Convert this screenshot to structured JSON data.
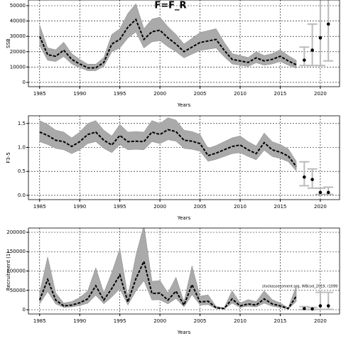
{
  "chart_data": [
    {
      "type": "line",
      "title": "F=F_R",
      "y_label": "SSB",
      "x_label": "Years",
      "x": [
        1985,
        1986,
        1987,
        1988,
        1989,
        1990,
        1991,
        1992,
        1993,
        1994,
        1995,
        1996,
        1997,
        1998,
        1999,
        2000,
        2001,
        2002,
        2003,
        2004,
        2005,
        2006,
        2007,
        2008,
        2009,
        2010,
        2011,
        2012,
        2013,
        2014,
        2015,
        2016,
        2017
      ],
      "values": [
        30000,
        18000,
        17000,
        21000,
        15000,
        12000,
        9500,
        9500,
        13000,
        25000,
        28000,
        36000,
        41000,
        28000,
        33000,
        34000,
        29000,
        25000,
        20000,
        23000,
        26000,
        27000,
        28000,
        21000,
        15000,
        14000,
        13000,
        16000,
        14000,
        15000,
        17000,
        14000,
        11500
      ],
      "lower": [
        24000,
        14400,
        13600,
        16800,
        12000,
        9600,
        7600,
        7600,
        10400,
        20000,
        22400,
        28800,
        32800,
        22400,
        26400,
        27200,
        23200,
        20000,
        16000,
        18400,
        20800,
        21600,
        22400,
        16800,
        12000,
        11200,
        10400,
        12800,
        11200,
        12000,
        13600,
        11200,
        9200
      ],
      "upper": [
        37500,
        22500,
        21250,
        26250,
        18750,
        15000,
        11875,
        11875,
        16250,
        31250,
        35000,
        45000,
        51250,
        35000,
        41250,
        42500,
        36250,
        31250,
        25000,
        28750,
        32500,
        33750,
        35000,
        26250,
        18750,
        17500,
        16250,
        20000,
        17500,
        18750,
        21250,
        17500,
        14375
      ],
      "forecast": {
        "x": [
          2018,
          2019,
          2020,
          2021
        ],
        "values": [
          14500,
          21000,
          29000,
          38000
        ],
        "lower": [
          11000,
          11000,
          11000,
          14000
        ],
        "upper": [
          23000,
          38000,
          60000,
          60000
        ]
      },
      "xlim": [
        1983.6,
        2022.4
      ],
      "xticks": [
        1985,
        1990,
        1995,
        2000,
        2005,
        2010,
        2015,
        2020
      ],
      "ylim": [
        -2800,
        53700
      ],
      "yticks": [
        0,
        10000,
        20000,
        30000,
        40000,
        50000
      ],
      "grid": true
    },
    {
      "type": "line",
      "y_label": "F3-5",
      "x_label": "Years",
      "x": [
        1985,
        1986,
        1987,
        1988,
        1989,
        1990,
        1991,
        1992,
        1993,
        1994,
        1995,
        1996,
        1997,
        1998,
        1999,
        2000,
        2001,
        2002,
        2003,
        2004,
        2005,
        2006,
        2007,
        2008,
        2009,
        2010,
        2011,
        2012,
        2013,
        2014,
        2015,
        2016,
        2017
      ],
      "values": [
        1.32,
        1.25,
        1.15,
        1.12,
        1.02,
        1.12,
        1.27,
        1.32,
        1.15,
        1.05,
        1.25,
        1.12,
        1.13,
        1.12,
        1.32,
        1.27,
        1.37,
        1.33,
        1.15,
        1.13,
        1.08,
        0.83,
        0.88,
        0.95,
        1.02,
        1.05,
        0.95,
        0.87,
        1.1,
        0.95,
        0.9,
        0.82,
        0.6
      ],
      "lower": [
        1.12,
        1.06,
        0.98,
        0.95,
        0.87,
        0.95,
        1.08,
        1.12,
        0.98,
        0.89,
        1.06,
        0.95,
        0.96,
        0.95,
        1.12,
        1.08,
        1.16,
        1.13,
        0.98,
        0.96,
        0.92,
        0.71,
        0.75,
        0.81,
        0.87,
        0.89,
        0.81,
        0.74,
        0.94,
        0.81,
        0.77,
        0.7,
        0.51
      ],
      "upper": [
        1.56,
        1.48,
        1.36,
        1.32,
        1.2,
        1.32,
        1.5,
        1.56,
        1.36,
        1.24,
        1.48,
        1.32,
        1.33,
        1.32,
        1.56,
        1.5,
        1.62,
        1.57,
        1.36,
        1.33,
        1.27,
        0.98,
        1.04,
        1.12,
        1.2,
        1.24,
        1.12,
        1.03,
        1.3,
        1.12,
        1.06,
        0.97,
        0.71
      ],
      "forecast": {
        "x": [
          2018,
          2019,
          2020,
          2021
        ],
        "values": [
          0.38,
          0.33,
          0.06,
          0.06
        ],
        "lower": [
          0.2,
          0.15,
          0.02,
          0.02
        ],
        "upper": [
          0.7,
          0.55,
          0.15,
          0.17
        ]
      },
      "xlim": [
        1983.6,
        2022.4
      ],
      "xticks": [
        1985,
        1990,
        1995,
        2000,
        2005,
        2010,
        2015,
        2020
      ],
      "ylim": [
        -0.09,
        1.66
      ],
      "yticks": [
        {
          "value": 0,
          "label": "0.0"
        },
        {
          "value": 0.5,
          "label": "0.5"
        },
        {
          "value": 1,
          "label": "1.0"
        },
        {
          "value": 1.5,
          "label": "1.5"
        }
      ],
      "grid": true
    },
    {
      "type": "line",
      "y_label": "Recruitment (1)",
      "x_label": "Years",
      "annotation": "stockassessment.org, WBcod_2019, r1099",
      "x": [
        1985,
        1986,
        1987,
        1988,
        1989,
        1990,
        1991,
        1992,
        1993,
        1994,
        1995,
        1996,
        1997,
        1998,
        1999,
        2000,
        2001,
        2002,
        2003,
        2004,
        2005,
        2006,
        2007,
        2008,
        2009,
        2010,
        2011,
        2012,
        2013,
        2014,
        2015,
        2016,
        2017
      ],
      "values": [
        25000,
        78000,
        25000,
        10000,
        12000,
        18000,
        28000,
        62000,
        25000,
        55000,
        90000,
        20000,
        80000,
        125000,
        42000,
        43000,
        25000,
        48000,
        12000,
        65000,
        20000,
        22000,
        5000,
        3000,
        28000,
        10000,
        15000,
        12000,
        28000,
        15000,
        10000,
        3000,
        35000
      ],
      "lower": [
        15000,
        46800,
        15000,
        6000,
        7200,
        10800,
        16800,
        37200,
        15000,
        33000,
        54000,
        12000,
        48000,
        75000,
        25200,
        25800,
        15000,
        28800,
        7200,
        39000,
        12000,
        13200,
        3000,
        1800,
        16800,
        6000,
        9000,
        7200,
        16800,
        9000,
        6000,
        1800,
        21000
      ],
      "upper": [
        43750,
        136500,
        43750,
        17500,
        21000,
        31500,
        49000,
        108500,
        43750,
        96250,
        157500,
        35000,
        140000,
        218750,
        73500,
        75250,
        43750,
        84000,
        21000,
        113750,
        35000,
        38500,
        8750,
        5250,
        49000,
        17500,
        26250,
        21000,
        49000,
        26250,
        17500,
        5250,
        61250
      ],
      "forecast": {
        "x": [
          2018,
          2019,
          2020,
          2021
        ],
        "values": [
          3000,
          2000,
          10000,
          10000
        ],
        "lower": [
          500,
          500,
          1000,
          1000
        ],
        "upper": [
          8000,
          6000,
          45000,
          45000
        ]
      },
      "xlim": [
        1983.6,
        2022.4
      ],
      "xticks": [
        1985,
        1990,
        1995,
        2000,
        2005,
        2010,
        2015,
        2020
      ],
      "ylim": [
        -11000,
        211000
      ],
      "yticks": [
        0,
        50000,
        100000,
        150000,
        200000
      ],
      "grid": true
    }
  ]
}
